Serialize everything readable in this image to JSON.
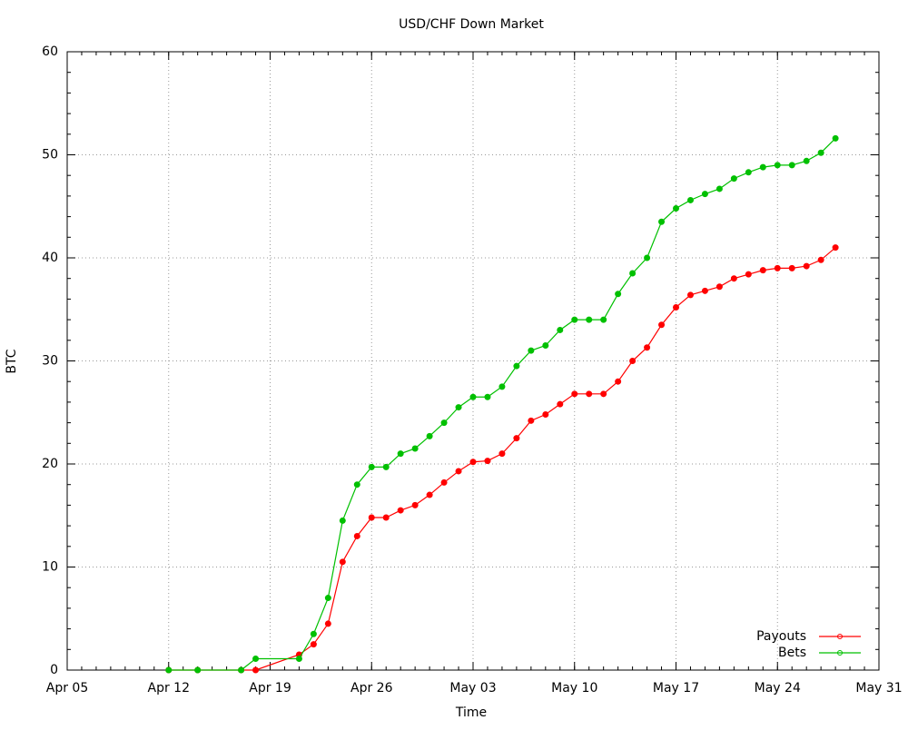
{
  "chart_data": {
    "type": "line",
    "title": "USD/CHF Down Market",
    "x_label": "Time",
    "y_label": "BTC",
    "x": [
      "Apr 12",
      "Apr 14",
      "Apr 17",
      "Apr 18",
      "Apr 21",
      "Apr 22",
      "Apr 23",
      "Apr 24",
      "Apr 25",
      "Apr 26",
      "Apr 27",
      "Apr 28",
      "Apr 29",
      "Apr 30",
      "May 01",
      "May 02",
      "May 03",
      "May 04",
      "May 05",
      "May 06",
      "May 07",
      "May 08",
      "May 09",
      "May 10",
      "May 11",
      "May 12",
      "May 13",
      "May 14",
      "May 15",
      "May 16",
      "May 17",
      "May 18",
      "May 19",
      "May 20",
      "May 21",
      "May 22",
      "May 23",
      "May 24",
      "May 25",
      "May 26",
      "May 27",
      "May 28"
    ],
    "series": [
      {
        "name": "Payouts",
        "color": "#ff0000",
        "values": [
          0,
          0,
          0,
          0,
          1.5,
          2.5,
          4.5,
          10.5,
          13,
          14.8,
          14.8,
          15.5,
          16,
          17,
          18.2,
          19.3,
          20.2,
          20.3,
          21,
          22.5,
          24.2,
          24.8,
          25.8,
          26.8,
          26.8,
          26.8,
          28,
          30,
          31.3,
          33.5,
          35.2,
          36.4,
          36.8,
          37.2,
          38,
          38.4,
          38.8,
          39,
          39,
          39.2,
          39.8,
          41
        ]
      },
      {
        "name": "Bets",
        "color": "#00c000",
        "values": [
          0,
          0,
          0,
          1.1,
          1.1,
          3.5,
          7,
          14.5,
          18,
          19.7,
          19.7,
          21,
          21.5,
          22.7,
          24,
          25.5,
          26.5,
          26.5,
          27.5,
          29.5,
          31,
          31.5,
          33,
          34,
          34,
          34,
          36.5,
          38.5,
          40,
          43.5,
          44.8,
          45.6,
          46.2,
          46.7,
          47.7,
          48.3,
          48.8,
          49,
          49,
          49.4,
          50.2,
          51.6
        ]
      }
    ],
    "xlim": [
      "Apr 05",
      "May 31"
    ],
    "xticks": [
      "Apr 05",
      "Apr 12",
      "Apr 19",
      "Apr 26",
      "May 03",
      "May 10",
      "May 17",
      "May 24",
      "May 31"
    ],
    "ylim": [
      0,
      60
    ],
    "yticks": [
      0,
      10,
      20,
      30,
      40,
      50,
      60
    ],
    "grid": true,
    "legend": "bottom-right"
  }
}
